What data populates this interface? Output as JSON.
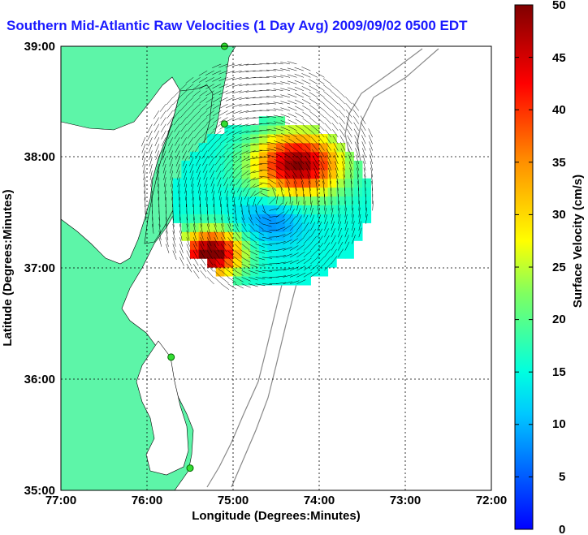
{
  "title": "Southern Mid-Atlantic Raw Velocities (1 Day Avg) 2009/09/02 0500 EDT",
  "map": {
    "xlabel": "Longitude (Degrees:Minutes)",
    "ylabel": "Latitude (Degrees:Minutes)",
    "x_ticks": [
      "77:00",
      "76:00",
      "75:00",
      "74:00",
      "73:00",
      "72:00"
    ],
    "y_ticks": [
      "39:00",
      "38:00",
      "37:00",
      "36:00",
      "35:00"
    ],
    "grid": "dotted",
    "land_color": "#5df5a8",
    "stations": [
      {
        "lon": -75.1,
        "lat": 39.0
      },
      {
        "lon": -75.1,
        "lat": 38.3
      },
      {
        "lon": -75.72,
        "lat": 36.2
      },
      {
        "lon": -75.5,
        "lat": 35.2
      }
    ]
  },
  "colorbar": {
    "label": "Surface Velocity (cm/s)",
    "ticks": [
      "50",
      "45",
      "40",
      "35",
      "30",
      "25",
      "20",
      "15",
      "10",
      "5",
      "0"
    ],
    "min": 0,
    "max": 50
  }
}
